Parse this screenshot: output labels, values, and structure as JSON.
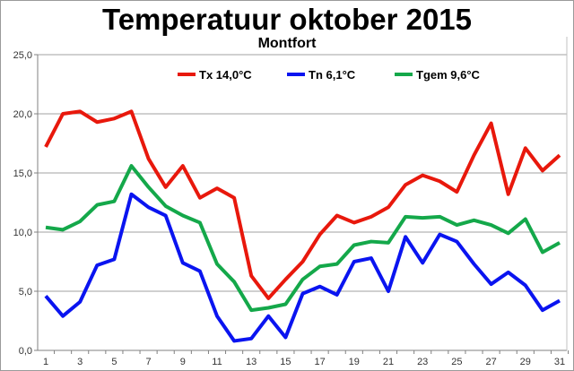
{
  "chart_data": {
    "type": "line",
    "title": "Temperatuur oktober 2015",
    "subtitle": "Montfort",
    "xlabel": "",
    "ylabel": "",
    "ylim": [
      0,
      25
    ],
    "yticks": [
      "0,0",
      "5,0",
      "10,0",
      "15,0",
      "20,0",
      "25,0"
    ],
    "ytick_values": [
      0,
      5,
      10,
      15,
      20,
      25
    ],
    "x": [
      1,
      2,
      3,
      4,
      5,
      6,
      7,
      8,
      9,
      10,
      11,
      12,
      13,
      14,
      15,
      16,
      17,
      18,
      19,
      20,
      21,
      22,
      23,
      24,
      25,
      26,
      27,
      28,
      29,
      30,
      31
    ],
    "xticks": [
      "1",
      "3",
      "5",
      "7",
      "9",
      "11",
      "13",
      "15",
      "17",
      "19",
      "21",
      "23",
      "25",
      "27",
      "29",
      "31"
    ],
    "grid": true,
    "legend_position": "top-center",
    "series": [
      {
        "name": "Tx 14,0°C",
        "color": "#e8180c",
        "values": [
          17.2,
          20.0,
          20.2,
          19.3,
          19.6,
          20.2,
          16.2,
          13.8,
          15.6,
          12.9,
          13.7,
          12.9,
          6.3,
          4.4,
          6.0,
          7.5,
          9.8,
          11.4,
          10.8,
          11.3,
          12.1,
          14.0,
          14.8,
          14.3,
          13.4,
          16.5,
          19.2,
          13.2,
          17.1,
          15.2,
          16.5
        ]
      },
      {
        "name": "Tn 6,1°C",
        "color": "#0a14f0",
        "values": [
          4.6,
          2.9,
          4.1,
          7.2,
          7.7,
          13.2,
          12.1,
          11.4,
          7.4,
          6.7,
          2.9,
          0.8,
          1.0,
          2.9,
          1.1,
          4.8,
          5.4,
          4.7,
          7.5,
          7.8,
          5.0,
          9.6,
          7.4,
          9.8,
          9.2,
          7.3,
          5.6,
          6.6,
          5.5,
          3.4,
          4.2
        ]
      },
      {
        "name": "Tgem 9,6°C",
        "color": "#14a84a",
        "values": [
          10.4,
          10.2,
          10.9,
          12.3,
          12.6,
          15.6,
          13.8,
          12.2,
          11.4,
          10.8,
          7.3,
          5.8,
          3.4,
          3.6,
          3.9,
          6.0,
          7.1,
          7.3,
          8.9,
          9.2,
          9.1,
          11.3,
          11.2,
          11.3,
          10.6,
          11.0,
          10.6,
          9.9,
          11.1,
          8.3,
          9.1
        ]
      }
    ]
  }
}
